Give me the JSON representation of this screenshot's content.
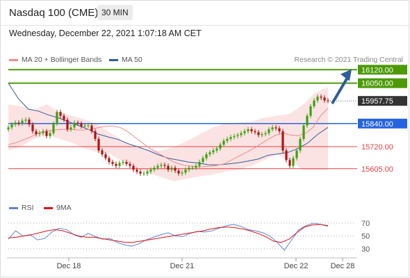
{
  "header": {
    "title": "Nasdaq 100 (CME)",
    "timeframe": "30 MIN"
  },
  "date_line": "Wednesday, December 22, 2021 1:07:18 AM CET",
  "legend": {
    "bb_label": "MA 20 + Bollinger Bands",
    "bb_color": "#f08a8a",
    "ma50_label": "MA 50",
    "ma50_color": "#2e5c9a",
    "credit": "Research © 2021 Trading Central"
  },
  "rsi_legend": {
    "rsi_label": "RSI",
    "rsi_color": "#5b82d8",
    "ma_label": "9MA",
    "ma_color": "#e01010"
  },
  "chart_data": {
    "type": "candlestick",
    "price_axis": {
      "min": 15550,
      "max": 16150
    },
    "x_ticks": [
      "Dec 18",
      "Dec 21",
      "Dec 22",
      "Dec 28"
    ],
    "levels": [
      {
        "label": "16120.00",
        "value": 16120,
        "kind": "resistance",
        "color": "#4c9a06"
      },
      {
        "label": "16050.00",
        "value": 16050,
        "kind": "resistance",
        "color": "#4c9a06"
      },
      {
        "label": "15957.75",
        "value": 15957.75,
        "kind": "last",
        "color": "#333333"
      },
      {
        "label": "15840.00",
        "value": 15840,
        "kind": "pivot",
        "color": "#2563e0"
      },
      {
        "label": "15720.00",
        "value": 15720,
        "kind": "support",
        "color": "#e04040"
      },
      {
        "label": "15605.00",
        "value": 15605,
        "kind": "support",
        "color": "#e04040"
      }
    ],
    "close_series": [
      15820,
      15835,
      15845,
      15840,
      15855,
      15860,
      15835,
      15800,
      15785,
      15790,
      15800,
      15775,
      15790,
      15840,
      15900,
      15880,
      15860,
      15810,
      15820,
      15845,
      15840,
      15825,
      15830,
      15830,
      15800,
      15760,
      15700,
      15680,
      15660,
      15640,
      15630,
      15620,
      15635,
      15640,
      15630,
      15620,
      15600,
      15590,
      15580,
      15580,
      15590,
      15600,
      15610,
      15620,
      15625,
      15620,
      15600,
      15610,
      15595,
      15580,
      15585,
      15600,
      15610,
      15610,
      15620,
      15640,
      15660,
      15680,
      15690,
      15700,
      15710,
      15730,
      15750,
      15760,
      15770,
      15775,
      15780,
      15790,
      15800,
      15810,
      15800,
      15795,
      15780,
      15785,
      15790,
      15810,
      15820,
      15815,
      15800,
      15700,
      15650,
      15620,
      15660,
      15700,
      15760,
      15830,
      15880,
      15930,
      15960,
      15980,
      15975,
      15960,
      15957.75
    ],
    "ma20": [
      15730,
      15740,
      15755,
      15770,
      15790,
      15800,
      15805,
      15810,
      15810,
      15808,
      15805,
      15810,
      15818,
      15825,
      15828,
      15820,
      15800,
      15770,
      15740,
      15712,
      15690,
      15667,
      15645,
      15630,
      15620,
      15617,
      15615,
      15618,
      15622,
      15630,
      15650,
      15670,
      15690,
      15710,
      15735,
      15760,
      15780,
      15790,
      15780,
      15777,
      15790,
      15820,
      15880,
      15920
    ],
    "ma50": [
      16050,
      15970,
      15915,
      15905,
      15885,
      15870,
      15850,
      15830,
      15810,
      15785,
      15770,
      15757,
      15735,
      15718,
      15700,
      15678,
      15660,
      15650,
      15640,
      15635,
      15626,
      15625,
      15630,
      15636,
      15645,
      15655,
      15675,
      15682,
      15690,
      15710,
      15740,
      15785,
      15820
    ],
    "bb_upper": [
      15940,
      15930,
      15910,
      15940,
      15900,
      15880,
      15860,
      15835,
      15790,
      15750,
      15720,
      15700,
      15700,
      15720,
      15750,
      15785,
      15820,
      15840,
      15845,
      15850,
      15870,
      15880,
      15890,
      15935,
      16000,
      16030
    ],
    "bb_lower": [
      15700,
      15720,
      15760,
      15780,
      15760,
      15740,
      15710,
      15690,
      15680,
      15640,
      15610,
      15580,
      15560,
      15540,
      15555,
      15565,
      15575,
      15590,
      15600,
      15620,
      15650,
      15680,
      15650,
      15600,
      15600,
      15600
    ],
    "rsi": {
      "axis_ticks": [
        70,
        50,
        30
      ],
      "rsi_values": [
        45,
        58,
        50,
        52,
        44,
        46,
        56,
        62,
        60,
        52,
        48,
        54,
        49,
        45,
        46,
        40,
        36,
        34,
        38,
        44,
        48,
        52,
        55,
        50,
        49,
        54,
        57,
        56,
        58,
        62,
        66,
        68,
        65,
        60,
        58,
        55,
        50,
        40,
        28,
        44,
        60,
        66,
        70,
        68,
        65
      ],
      "ma_values": [
        47,
        48,
        50,
        52,
        55,
        58,
        60,
        58,
        54,
        50,
        48,
        48,
        46,
        44,
        42,
        40,
        40,
        42,
        44,
        46,
        48,
        50,
        52,
        54,
        56,
        58,
        61,
        63,
        64,
        63,
        61,
        58,
        54,
        49,
        42,
        40,
        45,
        55,
        64,
        67,
        68,
        66
      ]
    }
  }
}
